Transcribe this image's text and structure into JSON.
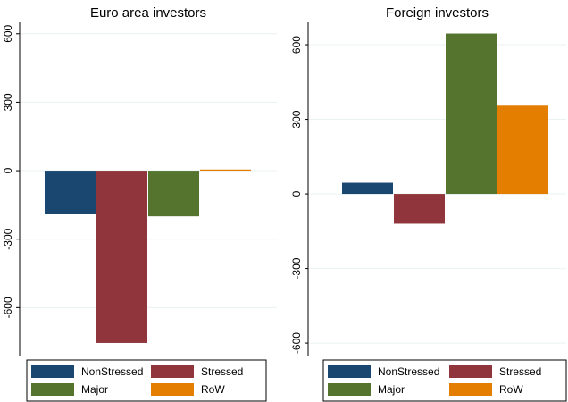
{
  "chart_data": [
    {
      "type": "bar",
      "title": "Euro area investors",
      "series": [
        {
          "name": "NonStressed",
          "color": "#1a476f",
          "values": [
            -190
          ]
        },
        {
          "name": "Stressed",
          "color": "#90353b",
          "values": [
            -755
          ]
        },
        {
          "name": "Major",
          "color": "#55752f",
          "values": [
            -200
          ]
        },
        {
          "name": "RoW",
          "color": "#e37e00",
          "values": [
            5
          ]
        }
      ],
      "ylim": [
        -810,
        650
      ],
      "yticks": [
        -600,
        -300,
        0,
        300,
        600
      ],
      "grid": true
    },
    {
      "type": "bar",
      "title": "Foreign investors",
      "series": [
        {
          "name": "NonStressed",
          "color": "#1a476f",
          "values": [
            45
          ]
        },
        {
          "name": "Stressed",
          "color": "#90353b",
          "values": [
            -120
          ]
        },
        {
          "name": "Major",
          "color": "#55752f",
          "values": [
            645
          ]
        },
        {
          "name": "RoW",
          "color": "#e37e00",
          "values": [
            355
          ]
        }
      ],
      "ylim": [
        -650,
        690
      ],
      "yticks": [
        -600,
        -300,
        0,
        300,
        600
      ],
      "grid": true
    }
  ]
}
